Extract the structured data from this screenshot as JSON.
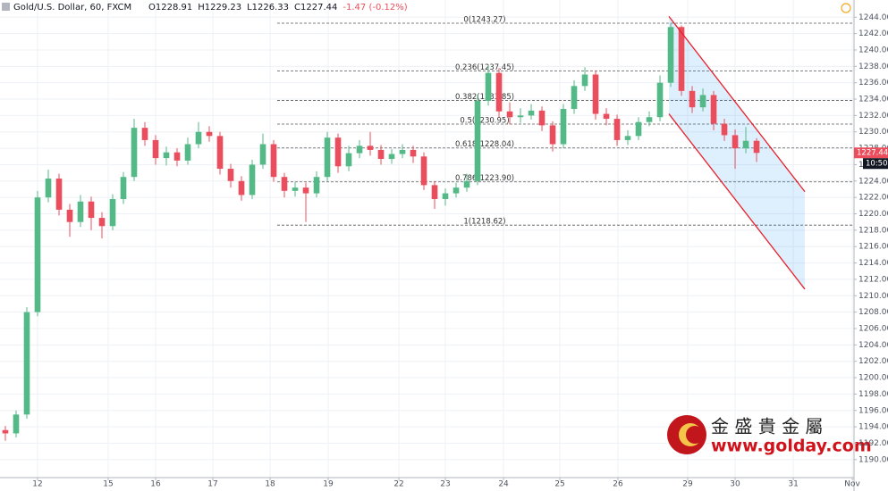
{
  "chart_data": {
    "type": "candlestick",
    "title": "Gold/U.S. Dollar, 60, FXCM",
    "header_values": [
      "O1228.91",
      "H1229.23",
      "L1226.33",
      "C1227.44",
      "-1.47 (-0.12%)"
    ],
    "countdown": "10:50",
    "up_color": "#53b987",
    "down_color": "#eb4d5c",
    "grid": true,
    "x": [
      0,
      1,
      2,
      3,
      4,
      5,
      6,
      7,
      8,
      9,
      10,
      11,
      12,
      13,
      14,
      15,
      16,
      17,
      18,
      19,
      20,
      21,
      22,
      23,
      24,
      25,
      26,
      27,
      28,
      29,
      30,
      31,
      32,
      33,
      34,
      35,
      36,
      37,
      38,
      39,
      40,
      41,
      42,
      43,
      44,
      45,
      46,
      47,
      48,
      49,
      50,
      51,
      52,
      53,
      54,
      55,
      56,
      57,
      58,
      59,
      60,
      61,
      62,
      63,
      64,
      65,
      66,
      67,
      68,
      69,
      70
    ],
    "candles": {
      "open": [
        1193.6,
        1193.2,
        1195.5,
        1208.0,
        1222.0,
        1224.3,
        1220.5,
        1219.0,
        1221.5,
        1219.5,
        1218.5,
        1221.8,
        1224.5,
        1230.5,
        1229.0,
        1226.8,
        1227.5,
        1226.5,
        1228.5,
        1230.0,
        1229.5,
        1225.5,
        1224.0,
        1222.3,
        1226.0,
        1228.5,
        1224.5,
        1222.8,
        1223.2,
        1222.5,
        1224.5,
        1229.3,
        1225.8,
        1227.4,
        1228.3,
        1227.8,
        1226.7,
        1227.3,
        1227.8,
        1227.0,
        1223.5,
        1221.8,
        1222.5,
        1223.2,
        1224.0,
        1233.8,
        1237.2,
        1232.5,
        1231.8,
        1232.0,
        1232.6,
        1230.8,
        1228.5,
        1232.8,
        1235.6,
        1237.0,
        1232.2,
        1231.6,
        1229.0,
        1229.5,
        1231.2,
        1231.8,
        1236.0,
        1242.8,
        1235.0,
        1233.0,
        1234.5,
        1231.0,
        1229.6,
        1228.0,
        1228.91
      ],
      "high": [
        1194.1,
        1196.0,
        1208.6,
        1222.8,
        1225.4,
        1224.9,
        1221.2,
        1222.3,
        1222.1,
        1220.2,
        1222.4,
        1225.1,
        1231.6,
        1231.2,
        1229.6,
        1228.2,
        1228.0,
        1229.3,
        1231.2,
        1230.7,
        1230.0,
        1226.1,
        1224.6,
        1226.6,
        1229.8,
        1229.0,
        1225.0,
        1223.9,
        1223.8,
        1225.2,
        1230.0,
        1229.8,
        1228.3,
        1229.0,
        1230.0,
        1228.4,
        1227.9,
        1228.5,
        1228.3,
        1227.5,
        1224.0,
        1223.1,
        1223.8,
        1224.9,
        1234.5,
        1238.1,
        1237.8,
        1233.6,
        1232.9,
        1233.4,
        1233.1,
        1231.3,
        1233.4,
        1236.3,
        1237.9,
        1237.5,
        1232.9,
        1232.1,
        1230.2,
        1231.8,
        1232.5,
        1236.9,
        1243.27,
        1243.0,
        1235.6,
        1235.3,
        1235.0,
        1231.6,
        1230.3,
        1230.6,
        1229.23
      ],
      "low": [
        1192.3,
        1192.7,
        1195.0,
        1207.5,
        1221.4,
        1219.8,
        1217.2,
        1218.4,
        1218.0,
        1217.0,
        1218.0,
        1221.2,
        1224.0,
        1228.3,
        1226.0,
        1225.9,
        1225.8,
        1226.0,
        1228.0,
        1228.8,
        1224.8,
        1223.2,
        1221.6,
        1221.8,
        1225.5,
        1223.9,
        1222.0,
        1222.1,
        1219.0,
        1222.0,
        1224.0,
        1225.0,
        1225.2,
        1226.8,
        1227.1,
        1226.0,
        1226.1,
        1226.8,
        1226.2,
        1222.9,
        1220.6,
        1221.0,
        1222.0,
        1222.7,
        1223.5,
        1233.2,
        1231.8,
        1230.9,
        1231.1,
        1231.5,
        1230.1,
        1227.6,
        1228.0,
        1232.2,
        1235.0,
        1231.5,
        1230.8,
        1228.3,
        1228.4,
        1229.0,
        1230.7,
        1231.3,
        1235.5,
        1234.4,
        1232.3,
        1232.5,
        1230.2,
        1228.9,
        1225.5,
        1227.4,
        1226.33
      ],
      "close": [
        1193.2,
        1195.5,
        1208.0,
        1222.0,
        1224.3,
        1220.5,
        1219.0,
        1221.5,
        1219.5,
        1218.5,
        1221.8,
        1224.5,
        1230.5,
        1229.0,
        1226.8,
        1227.5,
        1226.5,
        1228.5,
        1230.0,
        1229.5,
        1225.5,
        1224.0,
        1222.3,
        1226.0,
        1228.5,
        1224.5,
        1222.8,
        1223.2,
        1222.5,
        1224.5,
        1229.3,
        1225.8,
        1227.4,
        1228.3,
        1227.8,
        1226.7,
        1227.3,
        1227.8,
        1227.0,
        1223.5,
        1221.8,
        1222.5,
        1223.2,
        1224.0,
        1233.8,
        1237.2,
        1232.5,
        1231.8,
        1232.0,
        1232.6,
        1230.8,
        1228.5,
        1232.8,
        1235.6,
        1237.0,
        1232.2,
        1231.6,
        1229.0,
        1229.5,
        1231.2,
        1231.8,
        1236.0,
        1242.8,
        1235.0,
        1233.0,
        1234.5,
        1231.0,
        1229.6,
        1228.0,
        1228.91,
        1227.44
      ]
    },
    "xlim": [
      -0.5,
      79.08
    ],
    "xticks": [
      {
        "value": 3,
        "label": "12"
      },
      {
        "value": 9.58,
        "label": "15"
      },
      {
        "value": 14,
        "label": "16"
      },
      {
        "value": 19.33,
        "label": "17"
      },
      {
        "value": 24.67,
        "label": "18"
      },
      {
        "value": 30.08,
        "label": "19"
      },
      {
        "value": 36.67,
        "label": "22"
      },
      {
        "value": 41,
        "label": "23"
      },
      {
        "value": 46.42,
        "label": "24"
      },
      {
        "value": 51.67,
        "label": "25"
      },
      {
        "value": 57.08,
        "label": "26"
      },
      {
        "value": 63.58,
        "label": "29"
      },
      {
        "value": 68,
        "label": "30"
      },
      {
        "value": 73.42,
        "label": "31"
      },
      {
        "value": 78.92,
        "label": "Nov"
      }
    ],
    "ylim": [
      1187.8,
      1246.1
    ],
    "yticks": [
      {
        "value": 1190,
        "label": "1190.00"
      },
      {
        "value": 1192,
        "label": "1192.00"
      },
      {
        "value": 1194,
        "label": "1194.00"
      },
      {
        "value": 1196,
        "label": "1196.00"
      },
      {
        "value": 1198,
        "label": "1198.00"
      },
      {
        "value": 1200,
        "label": "1200.00"
      },
      {
        "value": 1202,
        "label": "1202.00"
      },
      {
        "value": 1204,
        "label": "1204.00"
      },
      {
        "value": 1206,
        "label": "1206.00"
      },
      {
        "value": 1208,
        "label": "1208.00"
      },
      {
        "value": 1210,
        "label": "1210.00"
      },
      {
        "value": 1212,
        "label": "1212.00"
      },
      {
        "value": 1214,
        "label": "1214.00"
      },
      {
        "value": 1216,
        "label": "1216.00"
      },
      {
        "value": 1218,
        "label": "1218.00"
      },
      {
        "value": 1220,
        "label": "1220.00"
      },
      {
        "value": 1222,
        "label": "1222.00"
      },
      {
        "value": 1224,
        "label": "1224.00"
      },
      {
        "value": 1226,
        "label": "1226.00"
      },
      {
        "value": 1228,
        "label": "1228.00"
      },
      {
        "value": 1230,
        "label": "1230.00"
      },
      {
        "value": 1232,
        "label": "1232.00"
      },
      {
        "value": 1234,
        "label": "1234.00"
      },
      {
        "value": 1236,
        "label": "1236.00"
      },
      {
        "value": 1238,
        "label": "1238.00"
      },
      {
        "value": 1240,
        "label": "1240.00"
      },
      {
        "value": 1242,
        "label": "1242.00"
      },
      {
        "value": 1244,
        "label": "1244.00"
      }
    ],
    "fib_x": [
      25.33,
      79.08
    ],
    "fib_levels": [
      {
        "value": 1243.27,
        "label": "0(1243.27)"
      },
      {
        "value": 1237.45,
        "label": "0.236(1237.45)"
      },
      {
        "value": 1233.85,
        "label": "0.382(1233.85)"
      },
      {
        "value": 1230.95,
        "label": "0.5(1230.95)"
      },
      {
        "value": 1228.04,
        "label": "0.618(1228.04)"
      },
      {
        "value": 1223.9,
        "label": "0.786(1223.90)"
      },
      {
        "value": 1218.62,
        "label": "1(1218.62)"
      }
    ],
    "channel": {
      "x": [
        61.83,
        74.5
      ],
      "upper": [
        1244.1,
        1222.7
      ],
      "lower": [
        1232.2,
        1210.8
      ]
    },
    "watermark": {
      "chinese": "金 盛 貴 金 屬",
      "url": "www.golday.com"
    }
  }
}
